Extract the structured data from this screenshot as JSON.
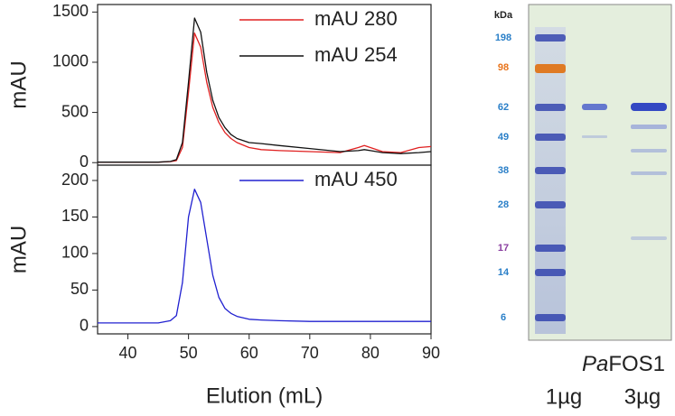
{
  "chart_data": [
    {
      "type": "line",
      "ylabel": "mAU",
      "x": [
        35,
        40,
        45,
        47,
        48,
        49,
        50,
        51,
        52,
        53,
        54,
        55,
        56,
        57,
        58,
        60,
        62,
        65,
        70,
        75,
        78,
        79,
        80,
        82,
        85,
        88,
        90
      ],
      "series": [
        {
          "name": "mAU 280",
          "color": "#e02020",
          "values": [
            5,
            5,
            5,
            10,
            20,
            150,
            700,
            1290,
            1150,
            800,
            550,
            400,
            300,
            240,
            200,
            150,
            130,
            120,
            110,
            100,
            150,
            170,
            150,
            110,
            100,
            150,
            160
          ]
        },
        {
          "name": "mAU 254",
          "color": "#111111",
          "values": [
            5,
            5,
            5,
            12,
            30,
            200,
            800,
            1440,
            1300,
            900,
            620,
            450,
            350,
            280,
            240,
            200,
            190,
            170,
            140,
            110,
            120,
            130,
            120,
            100,
            90,
            100,
            110
          ]
        }
      ],
      "xlim": [
        35,
        90
      ],
      "ylim": [
        -25,
        1575
      ],
      "yticks": [
        0,
        500,
        1000,
        1500
      ]
    },
    {
      "type": "line",
      "ylabel": "mAU",
      "xlabel": "Elution (mL)",
      "x": [
        35,
        40,
        45,
        47,
        48,
        49,
        50,
        51,
        52,
        53,
        54,
        55,
        56,
        57,
        58,
        60,
        62,
        65,
        70,
        75,
        78,
        79,
        80,
        82,
        85,
        88,
        90
      ],
      "series": [
        {
          "name": "mAU 450",
          "color": "#2020d0",
          "values": [
            5,
            5,
            5,
            8,
            15,
            60,
            150,
            188,
            170,
            120,
            70,
            40,
            25,
            18,
            14,
            10,
            9,
            8,
            7,
            7,
            7,
            7,
            7,
            7,
            7,
            7,
            7
          ]
        }
      ],
      "xlim": [
        35,
        90
      ],
      "ylim": [
        -10,
        221
      ],
      "xticks": [
        40,
        50,
        60,
        70,
        80,
        90
      ],
      "yticks": [
        0,
        50,
        100,
        150,
        200
      ]
    }
  ],
  "gel": {
    "unit": "kDa",
    "markers": [
      198,
      98,
      62,
      49,
      38,
      28,
      17,
      14,
      6
    ],
    "marker_colors": [
      "#2a7fc8",
      "#e8741c",
      "#2a7fc8",
      "#2a7fc8",
      "#2a7fc8",
      "#2a7fc8",
      "#8a3fa0",
      "#2a7fc8",
      "#2a7fc8"
    ],
    "name_italic": "Pa",
    "name_rest": "FOS1",
    "lanes": [
      "1µg",
      "3µg"
    ]
  }
}
